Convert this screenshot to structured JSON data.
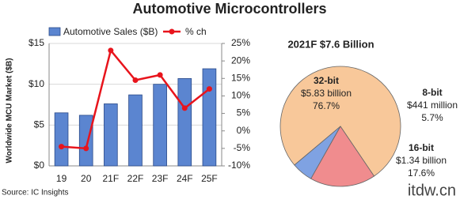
{
  "title": "Automotive Microcontrollers",
  "source": "Source: IC Insights",
  "watermark": "itdw.cn",
  "chart_data": [
    {
      "type": "bar-line",
      "y_label": "Worldwide MCU Market ($B)",
      "categories": [
        "19",
        "20",
        "21F",
        "22F",
        "23F",
        "24F",
        "25F"
      ],
      "series": [
        {
          "name": "Automotive Sales ($B)",
          "color": "#5b85d0",
          "values": [
            6.5,
            6.2,
            7.6,
            8.7,
            10.0,
            10.7,
            11.9
          ]
        },
        {
          "name": "% ch",
          "color": "#e8141c",
          "axis": "y2",
          "values": [
            -4.5,
            -5,
            23,
            14.5,
            16,
            6.5,
            12
          ]
        }
      ],
      "ylim": [
        0,
        15
      ],
      "yticks": [
        {
          "value": 0,
          "label": "$0"
        },
        {
          "value": 5,
          "label": "$5"
        },
        {
          "value": 10,
          "label": "$10"
        },
        {
          "value": 15,
          "label": "$15"
        }
      ],
      "y2lim": [
        -10,
        25
      ],
      "y2ticks": [
        {
          "value": -10,
          "label": "-10%"
        },
        {
          "value": -5,
          "label": "-5%"
        },
        {
          "value": 0,
          "label": "0%"
        },
        {
          "value": 5,
          "label": "5%"
        },
        {
          "value": 10,
          "label": "10%"
        },
        {
          "value": 15,
          "label": "15%"
        },
        {
          "value": 20,
          "label": "20%"
        },
        {
          "value": 25,
          "label": "25%"
        }
      ],
      "grid": true
    },
    {
      "type": "pie",
      "title": "2021F $7.6 Billion",
      "categories": [
        "32-bit",
        "8-bit",
        "16-bit"
      ],
      "amounts": [
        "$5.83 billion",
        "$441 million",
        "$1.34 billion"
      ],
      "values": [
        76.7,
        5.7,
        17.6
      ],
      "value_labels": [
        "76.7%",
        "5.7%",
        "17.6%"
      ],
      "colors": [
        "#f8c89a",
        "#7fa2e2",
        "#f08c8e"
      ]
    }
  ]
}
